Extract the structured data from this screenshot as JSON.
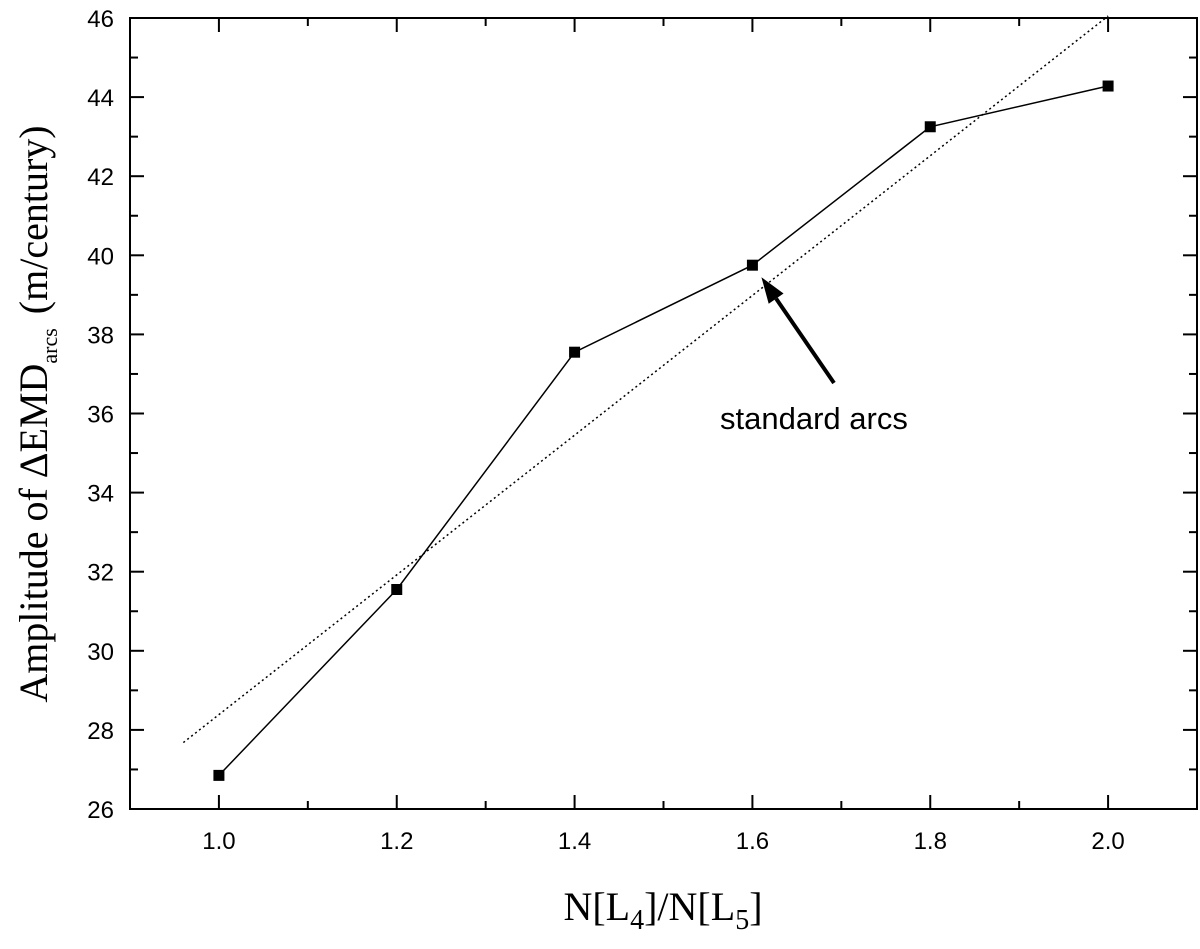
{
  "chart_data": {
    "type": "line",
    "title": "",
    "xlabel": {
      "main": "N[L",
      "sub1": "4",
      "mid": "]/N[L",
      "sub2": "5",
      "end": "]"
    },
    "ylabel": {
      "main": "Amplitude of ΔEMD",
      "sub": "arcs",
      "unit": "(m/century)"
    },
    "xlim": [
      0.9,
      2.1
    ],
    "ylim": [
      26,
      46
    ],
    "x_ticks": [
      1.0,
      1.2,
      1.4,
      1.6,
      1.8,
      2.0
    ],
    "x_tick_labels": [
      "1.0",
      "1.2",
      "1.4",
      "1.6",
      "1.8",
      "2.0"
    ],
    "y_ticks": [
      26,
      28,
      30,
      32,
      34,
      36,
      38,
      40,
      42,
      44,
      46
    ],
    "y_tick_labels": [
      "26",
      "28",
      "30",
      "32",
      "34",
      "36",
      "38",
      "40",
      "42",
      "44",
      "46"
    ],
    "grid": false,
    "series": [
      {
        "style": "solid line with square markers",
        "x": [
          1.0,
          1.2,
          1.4,
          1.6,
          1.8,
          2.0
        ],
        "y": [
          26.85,
          31.55,
          37.55,
          39.75,
          43.25,
          44.28
        ]
      },
      {
        "style": "dotted linear fit",
        "x": [
          0.96,
          2.0
        ],
        "y": [
          27.68,
          46.05
        ]
      }
    ],
    "annotation": {
      "text": "standard arcs",
      "points_to": {
        "x": 1.6,
        "y": 39.75
      }
    }
  }
}
